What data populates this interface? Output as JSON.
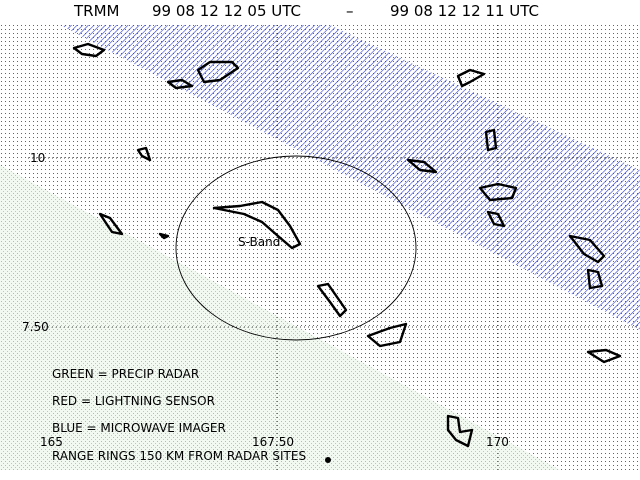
{
  "header": {
    "instrument": "TRMM",
    "start_time": "99 08 12 12 05 UTC",
    "separator": "–",
    "end_time": "99 08 12 12 11 UTC"
  },
  "grid_labels": {
    "latitudes": [
      "10",
      "7.50"
    ],
    "longitudes": [
      "165",
      "167.50",
      "170"
    ]
  },
  "annotations": {
    "radar_site": "S-Band"
  },
  "legend": [
    "GREEN = PRECIP RADAR",
    "RED = LIGHTNING SENSOR",
    "BLUE = MICROWAVE IMAGER",
    "RANGE RINGS 150 KM FROM RADAR SITES"
  ]
}
